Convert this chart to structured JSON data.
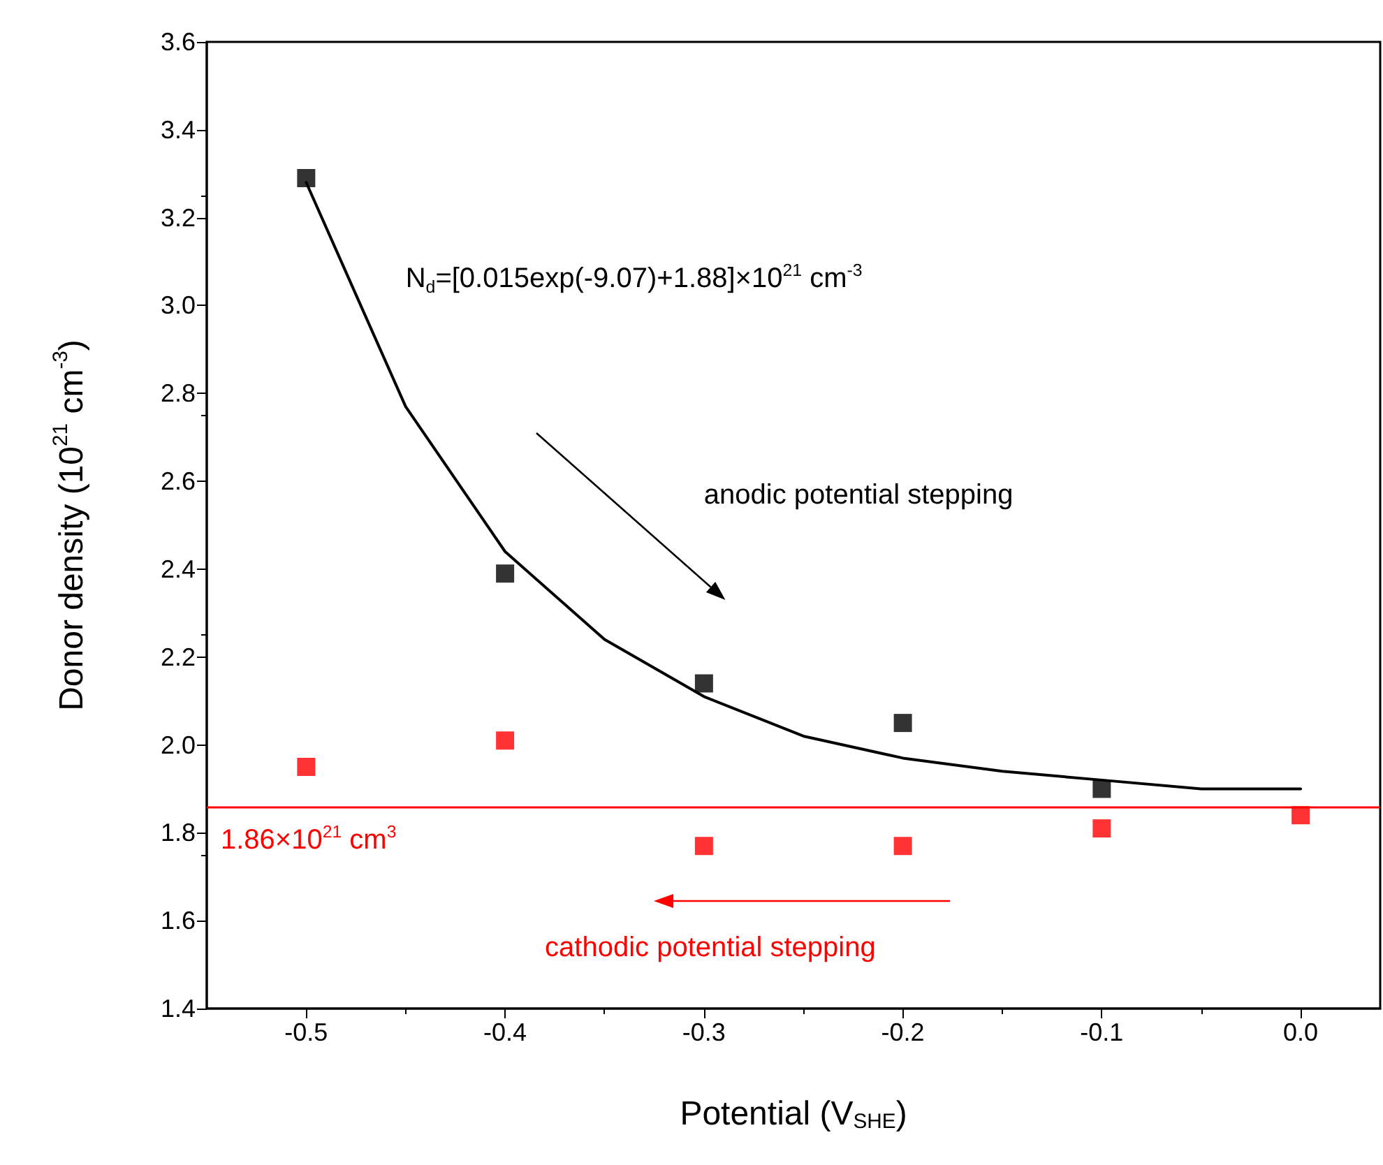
{
  "chart_data": {
    "type": "scatter",
    "xlabel": "Potential (V$_{SHE}$)",
    "ylabel": "Donor density (10$^{21}$ cm$^{-3}$)",
    "xlim": [
      -0.55,
      0.04
    ],
    "xticks": [
      -0.5,
      -0.4,
      -0.3,
      -0.2,
      -0.1,
      {
        "value": 0,
        "label": "0.0"
      }
    ],
    "ylim": [
      1.4,
      3.6
    ],
    "yticks": [
      1.4,
      1.6,
      1.8,
      {
        "value": 2,
        "label": "2.0"
      },
      2.2,
      2.4,
      2.6,
      2.8,
      {
        "value": 3,
        "label": "3.0"
      },
      3.2,
      3.4,
      3.6
    ],
    "grid": false,
    "marker": "square",
    "series": [
      {
        "color": "#000000",
        "x": [
          -0.5,
          -0.4,
          -0.3,
          -0.2,
          -0.1
        ],
        "values": [
          3.29,
          2.39,
          2.14,
          2.05,
          1.9
        ]
      },
      {
        "color": "#ff0000",
        "x": [
          -0.5,
          -0.4,
          -0.3,
          -0.2,
          -0.1,
          0
        ],
        "values": [
          1.95,
          2.01,
          1.77,
          1.77,
          1.81,
          1.84
        ]
      },
      {
        "type": "line",
        "color": "#000000",
        "marker": "none",
        "line_style": "solid",
        "x": [
          -0.5,
          -0.45,
          -0.4,
          -0.35,
          -0.3,
          -0.25,
          -0.2,
          -0.15,
          -0.1,
          -0.05,
          0
        ],
        "values": [
          3.28,
          2.77,
          2.44,
          2.24,
          2.11,
          2.02,
          1.97,
          1.94,
          1.92,
          1.9,
          1.9
        ]
      }
    ],
    "ref_lines": [
      {
        "axis": "y",
        "value": 1.86,
        "label": "1.86×10$^{21}$ cm$^{3}$",
        "color": "#ff0000"
      }
    ],
    "annotations": [
      "N$_{d}$=[0.015exp(-9.07)+1.88]×10$^{21}$ cm$^{-3}$",
      "anodic potential stepping",
      "cathodic potential stepping"
    ]
  }
}
